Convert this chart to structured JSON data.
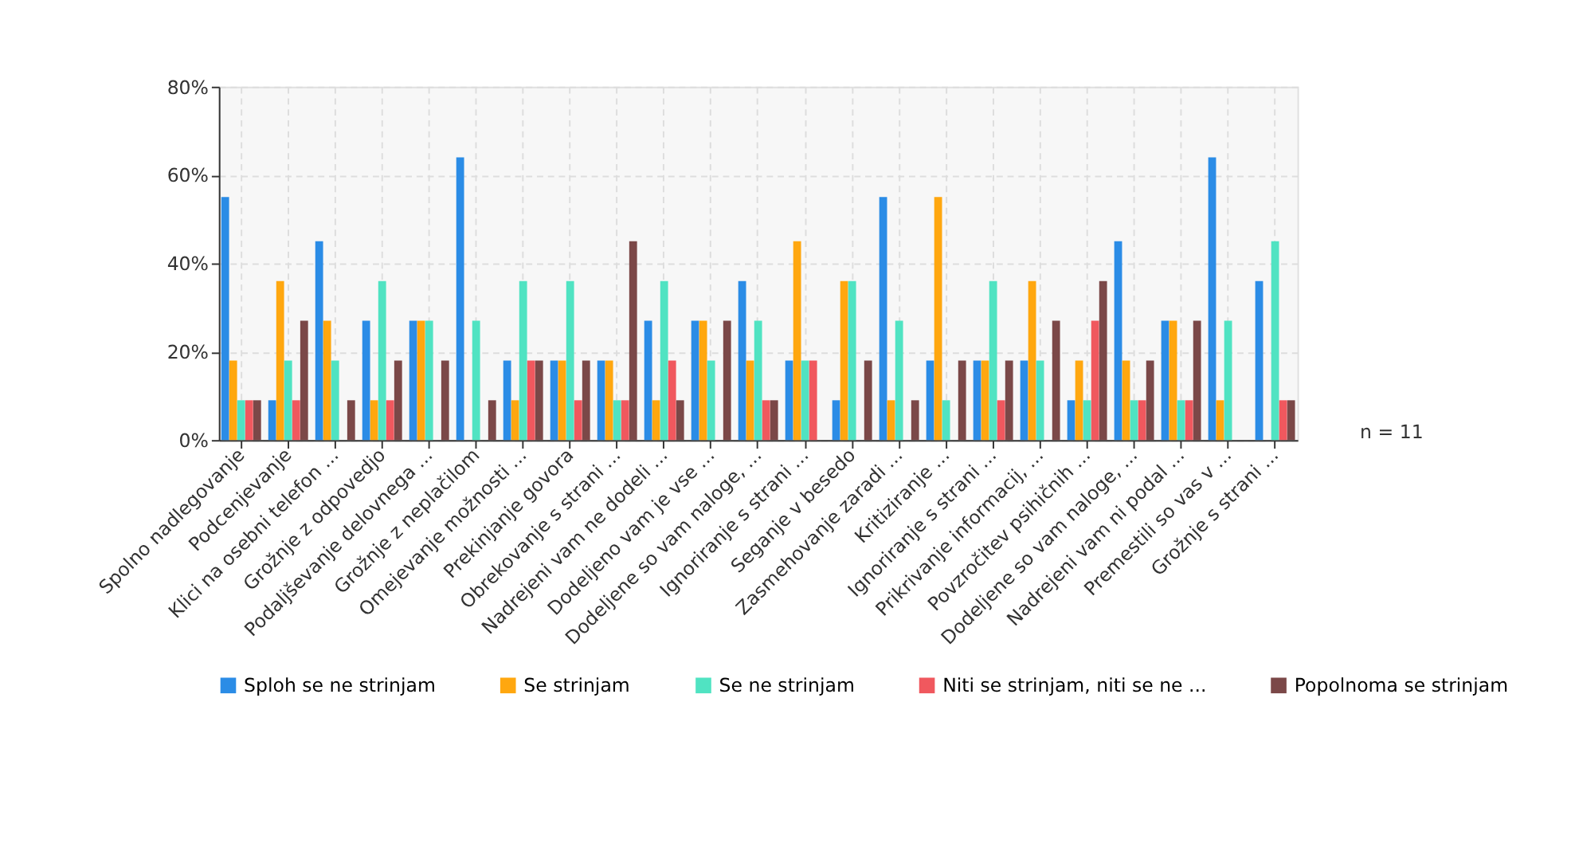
{
  "chart_data": {
    "type": "bar",
    "categories": [
      "Spolno nadlegovanje",
      "Podcenjevanje",
      "Klici na osebni telefon ...",
      "Grožnje z odpovedjo",
      "Podaljševanje delovnega ...",
      "Grožnje z neplačilom",
      "Omejevanje možnosti ...",
      "Prekinjanje govora",
      "Obrekovanje s strani ...",
      "Nadrejeni vam ne dodeli ...",
      "Dodeljeno vam je vse ...",
      "Dodeljene so vam naloge, ...",
      "Ignoriranje s strani ...",
      "Seganje v besedo",
      "Zasmehovanje zaradi ...",
      "Kritiziranje ...",
      "Ignoriranje s strani ...",
      "Prikrivanje informacij, ...",
      "Povzročitev psihičnih ...",
      "Dodeljene so vam naloge, ...",
      "Nadrejeni vam ni podal ...",
      "Premestili so vas v ...",
      "Grožnje s strani ..."
    ],
    "series": [
      {
        "name": "Sploh se ne strinjam",
        "color": "#2b8ce6",
        "values": [
          55,
          9,
          45,
          27,
          27,
          64,
          18,
          18,
          18,
          27,
          27,
          36,
          18,
          9,
          55,
          18,
          18,
          18,
          9,
          45,
          27,
          64,
          36
        ]
      },
      {
        "name": "Se strinjam",
        "color": "#ffa70f",
        "values": [
          18,
          36,
          27,
          9,
          27,
          0,
          9,
          18,
          18,
          9,
          27,
          18,
          45,
          36,
          9,
          55,
          18,
          36,
          18,
          18,
          27,
          9,
          0
        ]
      },
      {
        "name": "Se ne strinjam",
        "color": "#50e3c2",
        "values": [
          9,
          18,
          18,
          36,
          27,
          27,
          36,
          36,
          9,
          36,
          18,
          27,
          18,
          36,
          27,
          9,
          36,
          18,
          9,
          9,
          9,
          27,
          45
        ]
      },
      {
        "name": "Niti se strinjam, niti se ne ...",
        "color": "#f0585e",
        "values": [
          9,
          9,
          0,
          9,
          0,
          0,
          18,
          9,
          9,
          18,
          0,
          9,
          18,
          0,
          0,
          0,
          9,
          0,
          27,
          9,
          9,
          0,
          9
        ]
      },
      {
        "name": "Popolnoma se strinjam",
        "color": "#7b4848",
        "values": [
          9,
          27,
          9,
          18,
          18,
          9,
          18,
          18,
          45,
          9,
          27,
          9,
          0,
          18,
          9,
          18,
          18,
          27,
          36,
          18,
          27,
          0,
          9
        ]
      }
    ],
    "ylim": [
      0,
      80
    ],
    "yticks": [
      {
        "value": 0,
        "label": "0%"
      },
      {
        "value": 20,
        "label": "20%"
      },
      {
        "value": 40,
        "label": "40%"
      },
      {
        "value": 60,
        "label": "60%"
      },
      {
        "value": 80,
        "label": "80%"
      }
    ],
    "grid": true,
    "legend": "bottom",
    "annotations": [
      "n = 11"
    ]
  }
}
